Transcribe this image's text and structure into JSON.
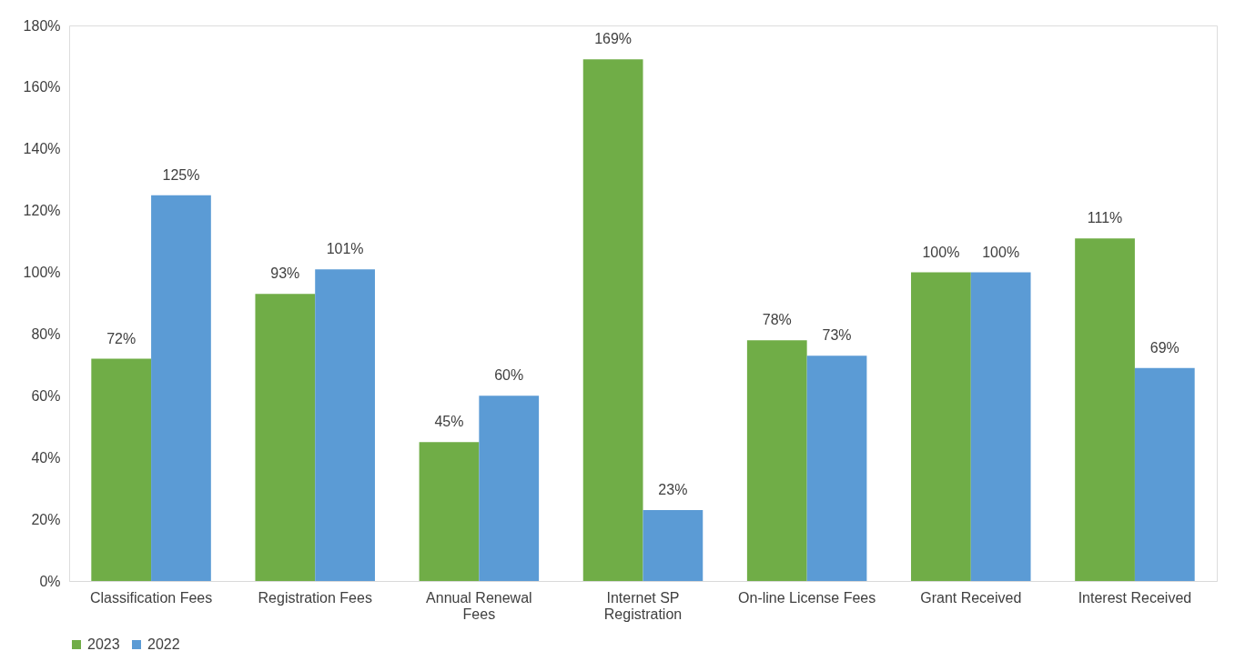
{
  "chart_data": {
    "type": "bar",
    "categories": [
      "Classification Fees",
      "Registration Fees",
      "Annual Renewal\nFees",
      "Internet SP\nRegistration",
      "On-line License Fees",
      "Grant Received",
      "Interest Received"
    ],
    "series": [
      {
        "name": "2023",
        "color": "#70ad47",
        "values": [
          72,
          93,
          45,
          169,
          78,
          100,
          111
        ],
        "value_labels": [
          "72%",
          "93%",
          "45%",
          "169%",
          "78%",
          "100%",
          "111%"
        ]
      },
      {
        "name": "2022",
        "color": "#5b9bd5",
        "values": [
          125,
          101,
          60,
          23,
          73,
          100,
          69
        ],
        "value_labels": [
          "125%",
          "101%",
          "60%",
          "23%",
          "73%",
          "100%",
          "69%"
        ]
      }
    ],
    "ylim": [
      0,
      180
    ],
    "yticks": [
      {
        "value": 0,
        "label": "0%"
      },
      {
        "value": 20,
        "label": "20%"
      },
      {
        "value": 40,
        "label": "40%"
      },
      {
        "value": 60,
        "label": "60%"
      },
      {
        "value": 80,
        "label": "80%"
      },
      {
        "value": 100,
        "label": "100%"
      },
      {
        "value": 120,
        "label": "120%"
      },
      {
        "value": 140,
        "label": "140%"
      },
      {
        "value": 160,
        "label": "160%"
      },
      {
        "value": 180,
        "label": "180%"
      }
    ],
    "grid": false,
    "legend": "bottom"
  }
}
